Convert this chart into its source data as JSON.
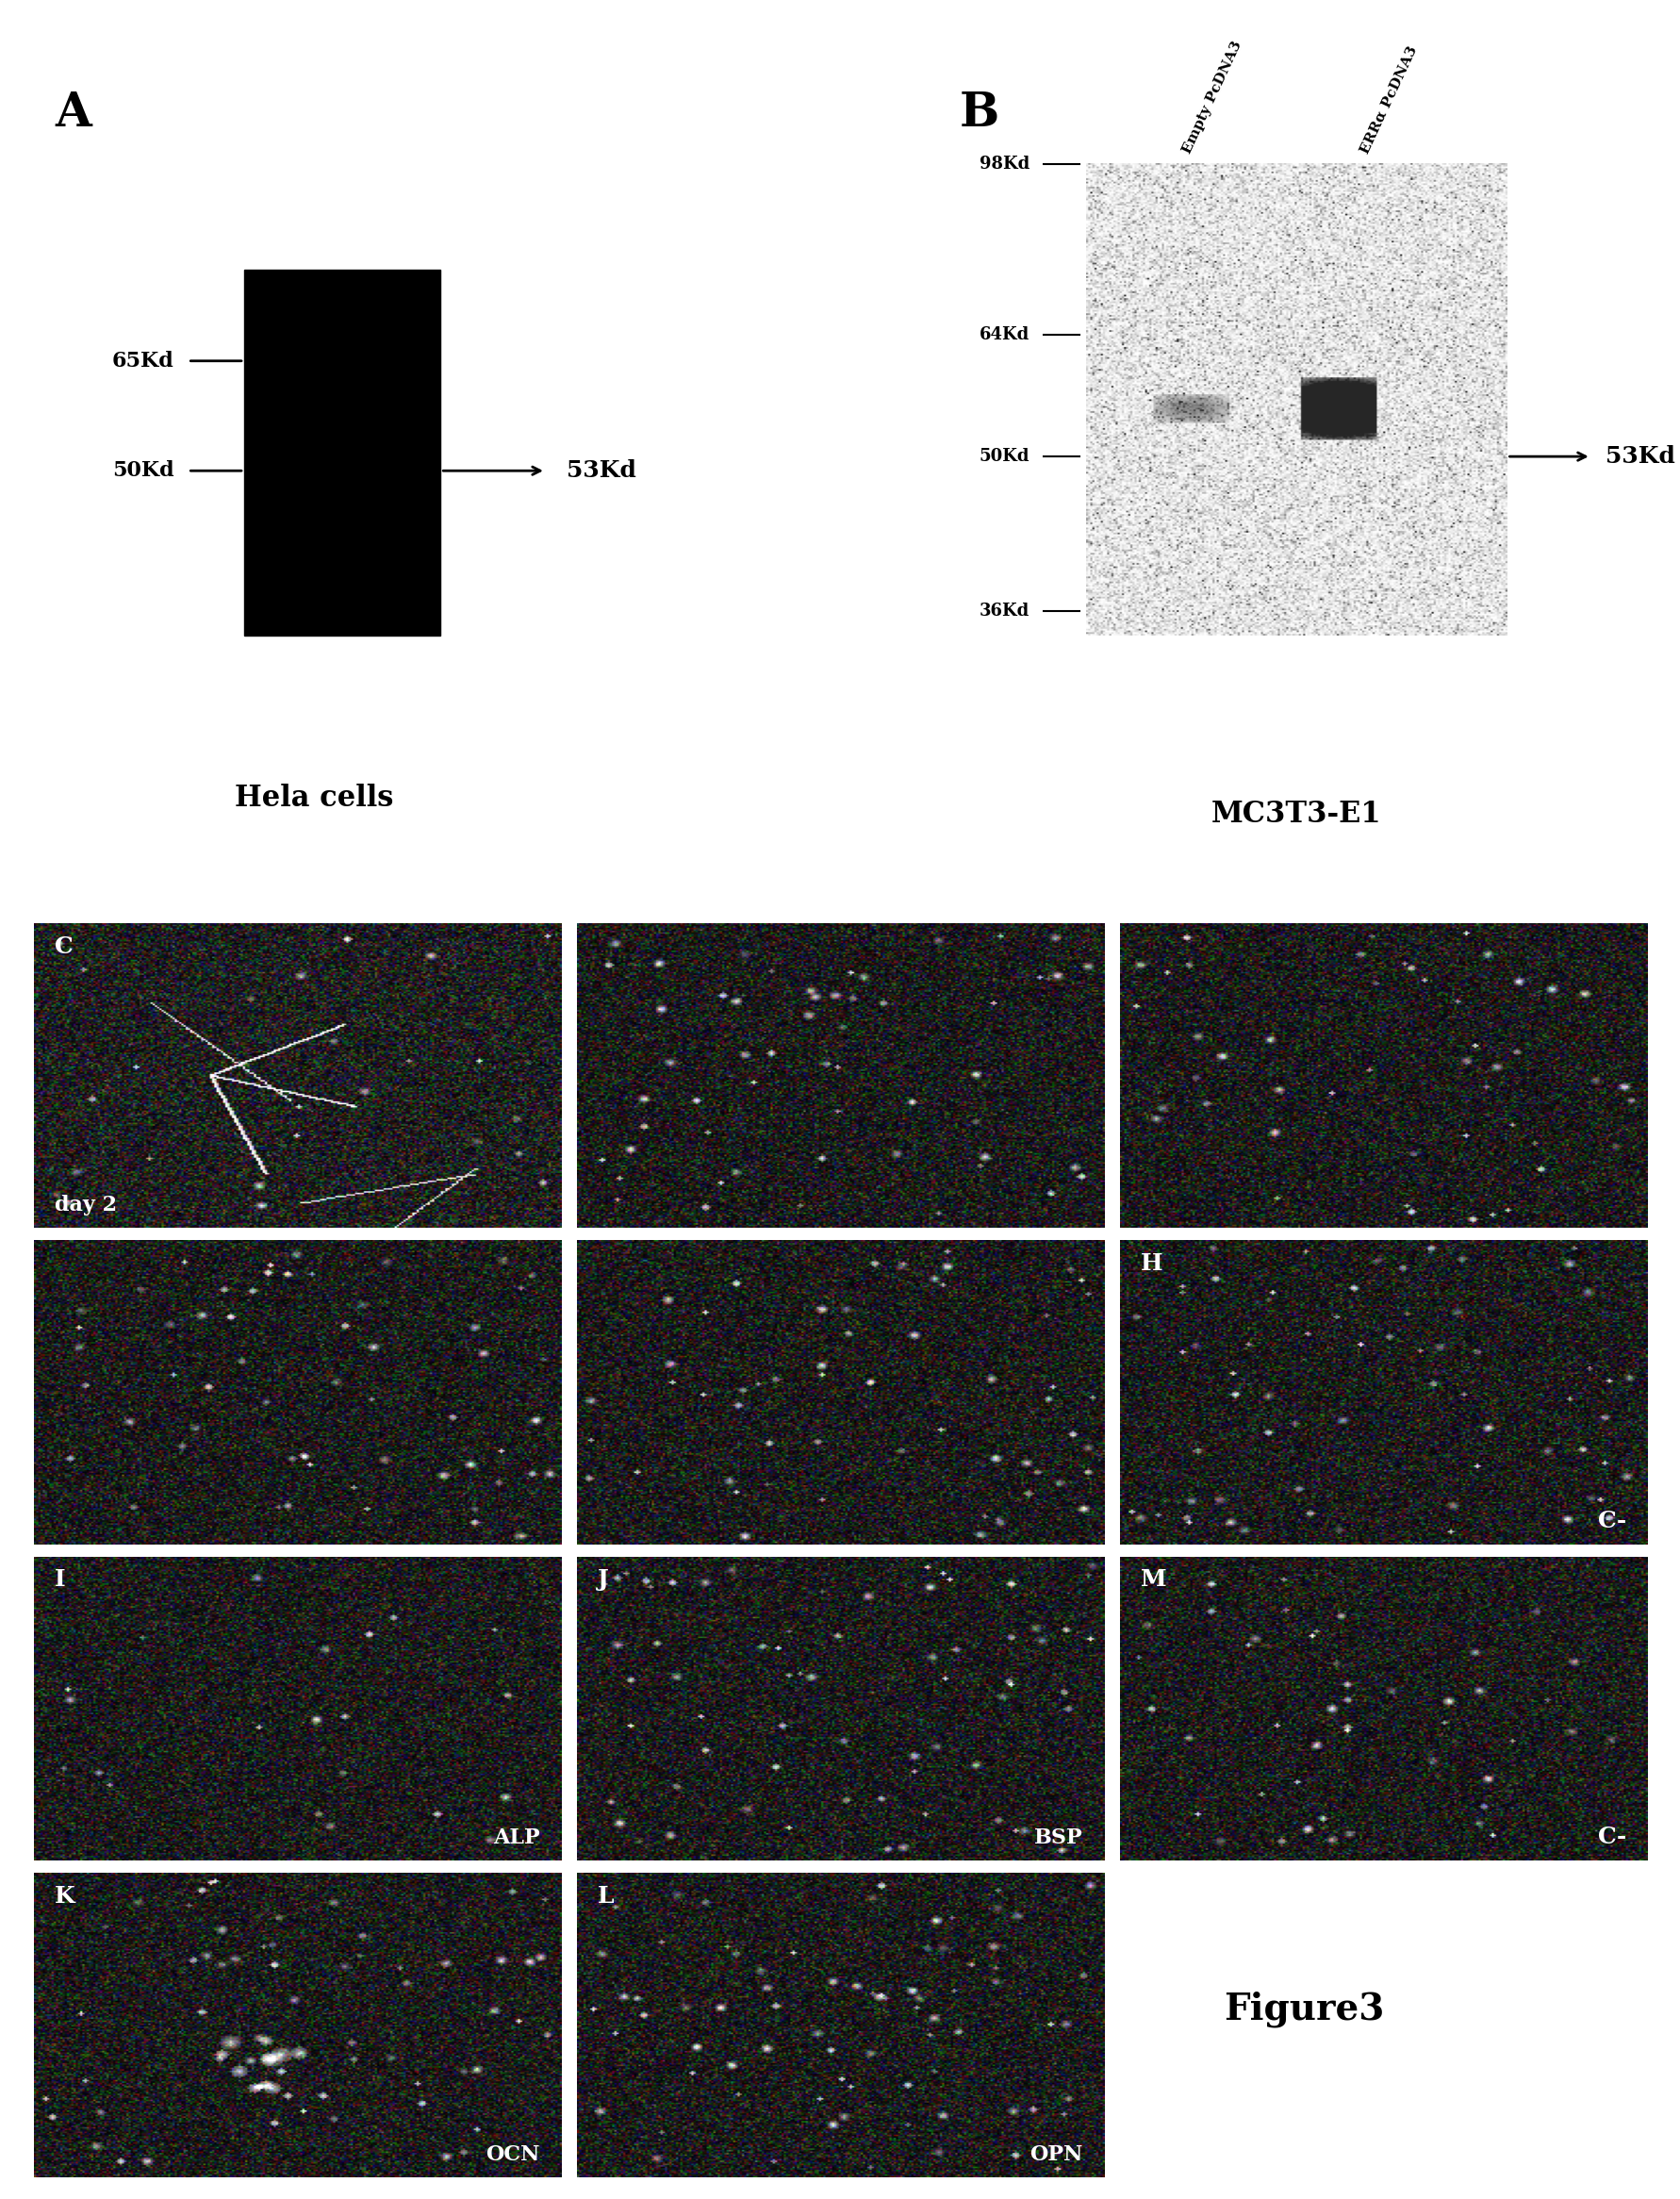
{
  "bg_color": "#ffffff",
  "panel_A_label": "A",
  "panel_B_label": "B",
  "panel_A_kd_labels": [
    "65Kd",
    "50Kd"
  ],
  "panel_A_arrow_label": "53Kd",
  "panel_B_kd_labels": [
    "98Kd",
    "64Kd",
    "50Kd",
    "36Kd"
  ],
  "panel_B_arrow_label": "53Kd",
  "panel_B_col1_label": "Empty PcDNA3",
  "panel_B_col2_label": "ERRα PcDNA3",
  "hela_cells_label": "Hela cells",
  "mc3t3_label": "MC3T3-E1",
  "figure_label": "Figure3",
  "panel_info": [
    [
      0,
      0,
      "C",
      "day 2",
      10,
      true
    ],
    [
      0,
      1,
      "",
      "",
      20,
      false
    ],
    [
      0,
      2,
      "",
      "",
      30,
      false
    ],
    [
      1,
      0,
      "",
      "",
      40,
      false
    ],
    [
      1,
      1,
      "",
      "",
      50,
      false
    ],
    [
      1,
      2,
      "H",
      "C-",
      60,
      false
    ],
    [
      2,
      0,
      "I",
      "ALP",
      70,
      false
    ],
    [
      2,
      1,
      "J",
      "BSP",
      80,
      false
    ],
    [
      2,
      2,
      "M",
      "C-",
      90,
      false
    ],
    [
      3,
      0,
      "K",
      "OCN",
      100,
      false
    ],
    [
      3,
      1,
      "L",
      "OPN",
      110,
      false
    ]
  ]
}
